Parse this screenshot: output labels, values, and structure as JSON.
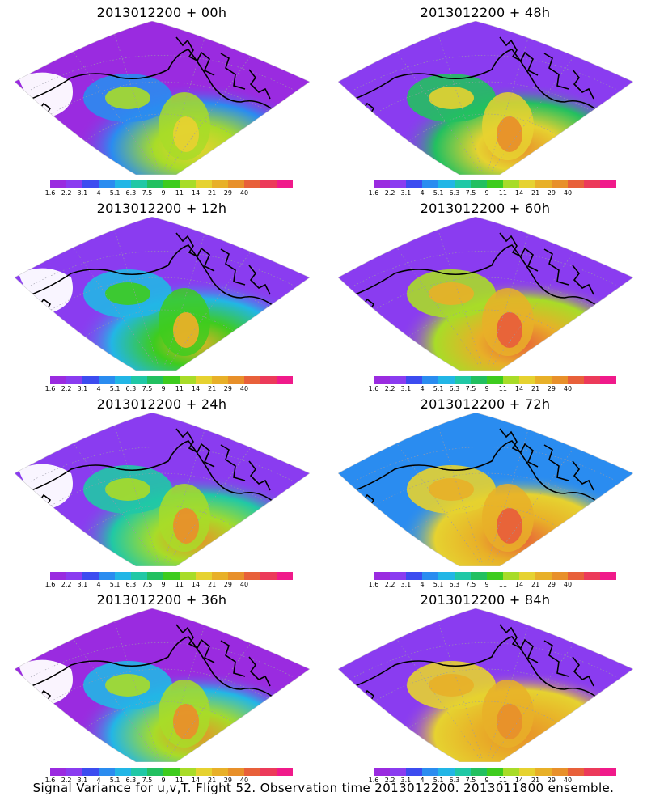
{
  "panels": [
    {
      "title": "2013012200 + 00h",
      "level": 0
    },
    {
      "title": "2013012200 + 48h",
      "level": 4
    },
    {
      "title": "2013012200 + 12h",
      "level": 1
    },
    {
      "title": "2013012200 + 60h",
      "level": 5
    },
    {
      "title": "2013012200 + 24h",
      "level": 2
    },
    {
      "title": "2013012200 + 72h",
      "level": 6
    },
    {
      "title": "2013012200 + 36h",
      "level": 3
    },
    {
      "title": "2013012200 + 84h",
      "level": 7
    }
  ],
  "colorbar": {
    "colors": [
      "#9a2be0",
      "#8a3cf0",
      "#3c4cf0",
      "#2a8cf0",
      "#22b6e6",
      "#20c8a6",
      "#22c060",
      "#3ecc1e",
      "#a8dc28",
      "#e6d230",
      "#e8b028",
      "#e8902a",
      "#e8603a",
      "#ec3a5a",
      "#f01a8a"
    ],
    "labels": [
      "1.6",
      "2.2",
      "3.1",
      "4",
      "5.1",
      "6.3",
      "7.5",
      "9",
      "11",
      "14",
      "21",
      "29",
      "40"
    ]
  },
  "caption": "Signal Variance for u,v,T. Flight 52. Observation time 2013012200. 2013011800 ensemble."
}
